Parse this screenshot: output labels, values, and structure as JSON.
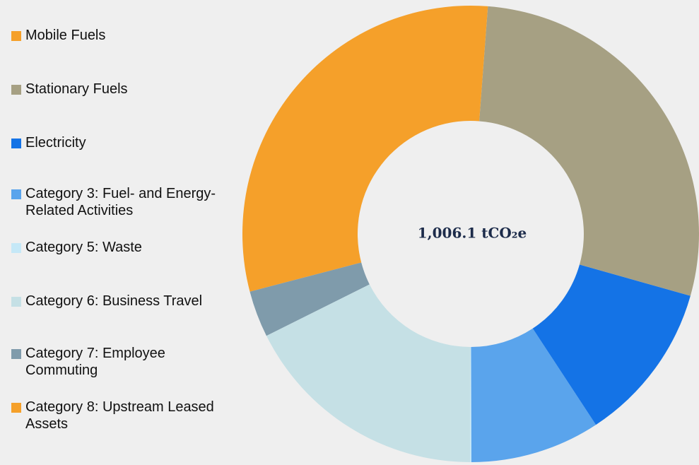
{
  "chart_data": {
    "type": "donut",
    "center_label": "1,006.1 tCO₂e",
    "categories": [
      "Mobile Fuels",
      "Stationary Fuels",
      "Electricity",
      "Category 3: Fuel- and Energy-Related Activities",
      "Category 5: Waste",
      "Category 6: Business Travel",
      "Category 7: Employee Commuting",
      "Category 8: Upstream Leased Assets"
    ],
    "values": [
      1.2,
      28.2,
      11.4,
      9.2,
      0.1,
      17.6,
      3.3,
      29.1
    ],
    "colors": [
      "#f5a02a",
      "#a6a083",
      "#1473e6",
      "#5aa4ec",
      "#c5e8f7",
      "#c5e0e5",
      "#7f9bab",
      "#f5a02a"
    ],
    "legend": "left"
  }
}
